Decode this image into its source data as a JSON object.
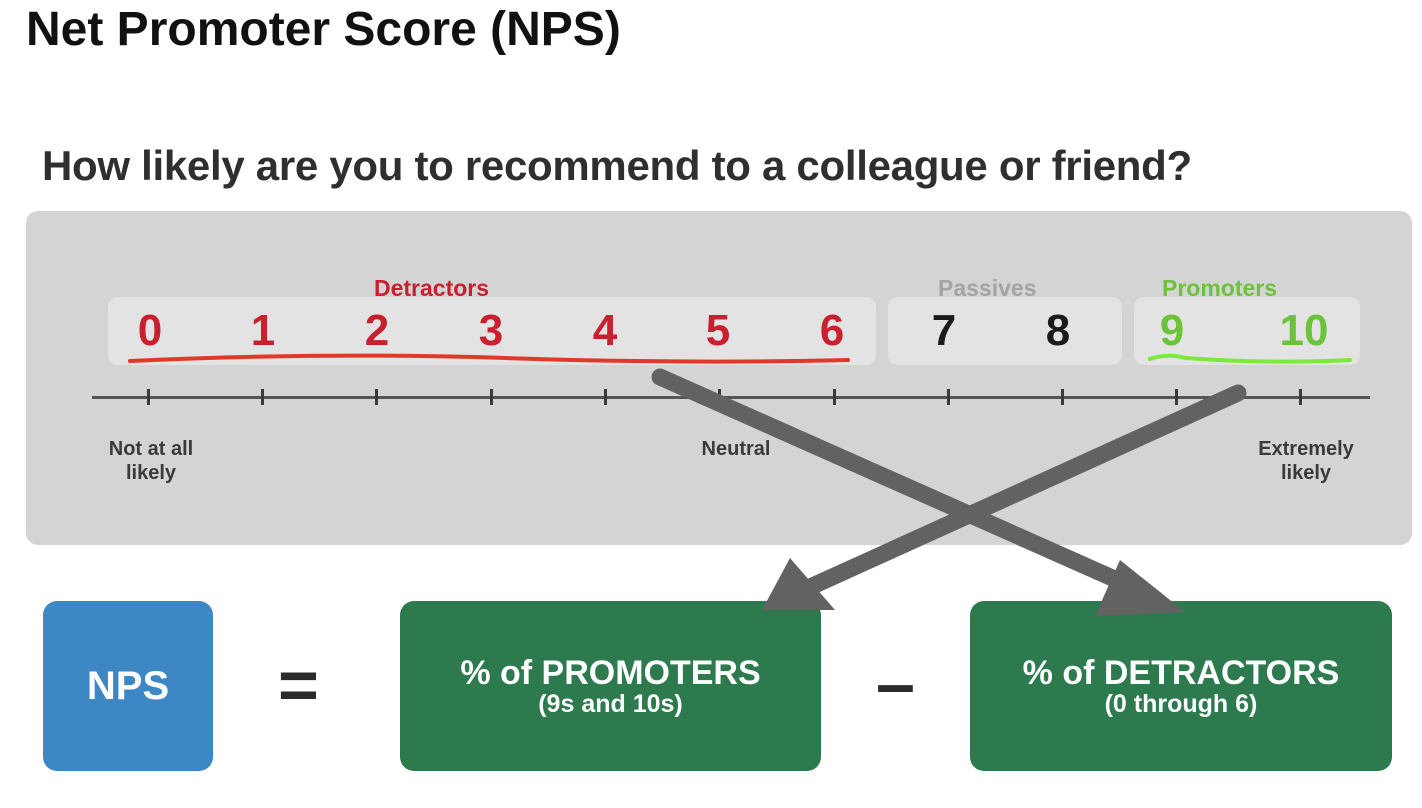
{
  "title": "Net Promoter Score (NPS)",
  "question": "How likely are you to recommend to a colleague or friend?",
  "colors": {
    "detractor": "#c8202f",
    "passive": "#9a9a9a",
    "promoter": "#6cc23a",
    "underline_detractor": "#e0392a",
    "underline_promoter": "#7cea3c",
    "passive_score": "#1a1a1a",
    "nps_box": "#3d87c4",
    "green_box": "#2d7a4e",
    "arrow": "#626262"
  },
  "groups": {
    "detractors": "Detractors",
    "passives": "Passives",
    "promoters": "Promoters"
  },
  "scores": [
    "0",
    "1",
    "2",
    "3",
    "4",
    "5",
    "6",
    "7",
    "8",
    "9",
    "10"
  ],
  "scale_anchors": {
    "low": "Not at all\nlikely",
    "mid": "Neutral",
    "high": "Extremely\nlikely"
  },
  "formula": {
    "nps": "NPS",
    "equals": "=",
    "promoters_main": "% of PROMOTERS",
    "promoters_sub": "(9s and 10s)",
    "minus": "–",
    "detractors_main": "% of DETRACTORS",
    "detractors_sub": "(0 through 6)"
  }
}
